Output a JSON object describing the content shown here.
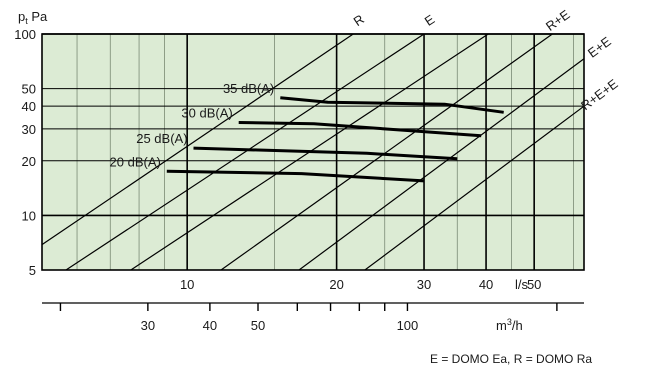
{
  "chart_data": {
    "type": "line",
    "title": "",
    "ylabel": "pt Pa",
    "xlabel": "l/s",
    "x_scale": "log",
    "y_scale": "log",
    "xlim": [
      5.1,
      63
    ],
    "ylim": [
      5,
      100
    ],
    "x_ticks": [
      10,
      20,
      30,
      40,
      50
    ],
    "x_tick_labels": [
      "10",
      "20",
      "30",
      "40",
      "50"
    ],
    "x_minor": [
      6,
      7,
      8,
      9,
      15,
      25,
      35,
      45,
      60
    ],
    "y_ticks": [
      5,
      10,
      20,
      30,
      40,
      50,
      100
    ],
    "y_tick_labels": [
      "5",
      "10",
      "20",
      "30",
      "40",
      "50",
      "100"
    ],
    "secondary_axis": {
      "label": "m³/h",
      "ticks": [
        30,
        40,
        50,
        100
      ],
      "tick_labels": [
        "30",
        "40",
        "50",
        "100"
      ],
      "minor": [
        20,
        60,
        70,
        80,
        90,
        200
      ]
    },
    "duct_lines": [
      {
        "name": "R",
        "points": [
          [
            5.1,
            6.9
          ],
          [
            21.6,
            100
          ]
        ]
      },
      {
        "name": "E",
        "points": [
          [
            5.7,
            5
          ],
          [
            30.0,
            100
          ]
        ]
      },
      {
        "name": "",
        "points": [
          [
            7.7,
            5
          ],
          [
            40.4,
            100
          ]
        ]
      },
      {
        "name": "R+E",
        "points": [
          [
            11.7,
            5
          ],
          [
            54.4,
            100
          ]
        ]
      },
      {
        "name": "E+E",
        "points": [
          [
            16.8,
            5
          ],
          [
            63,
            73
          ]
        ]
      },
      {
        "name": "R+E+E",
        "points": [
          [
            22.8,
            5
          ],
          [
            63,
            40
          ]
        ]
      }
    ],
    "series": [
      {
        "name": "35 dB(A)",
        "x": [
          15.4,
          19.2,
          33.0,
          43.4
        ],
        "y": [
          44.5,
          42,
          41,
          37
        ]
      },
      {
        "name": "30 dB(A)",
        "x": [
          12.7,
          18.0,
          39.1
        ],
        "y": [
          32.5,
          32,
          27.5
        ]
      },
      {
        "name": "25 dB(A)",
        "x": [
          10.3,
          23.0,
          35.0
        ],
        "y": [
          23.5,
          22,
          20.5
        ]
      },
      {
        "name": "20 dB(A)",
        "x": [
          9.1,
          17.0,
          30.0
        ],
        "y": [
          17.5,
          17,
          15.5
        ]
      }
    ],
    "grid": true,
    "legend": "none"
  },
  "labels": {
    "y_axis": "p",
    "y_axis_sub": "t",
    "y_axis_unit": " Pa",
    "x_unit": "l/s",
    "secondary_unit": "m",
    "secondary_unit_sup": "3",
    "secondary_unit_tail": "/h",
    "footnote": "E = DOMO Ea, R = DOMO Ra"
  },
  "colors": {
    "plot_background": "#dcebd4",
    "grid_minor": "#7a8a74",
    "grid_major": "#000000",
    "line": "#000000"
  }
}
